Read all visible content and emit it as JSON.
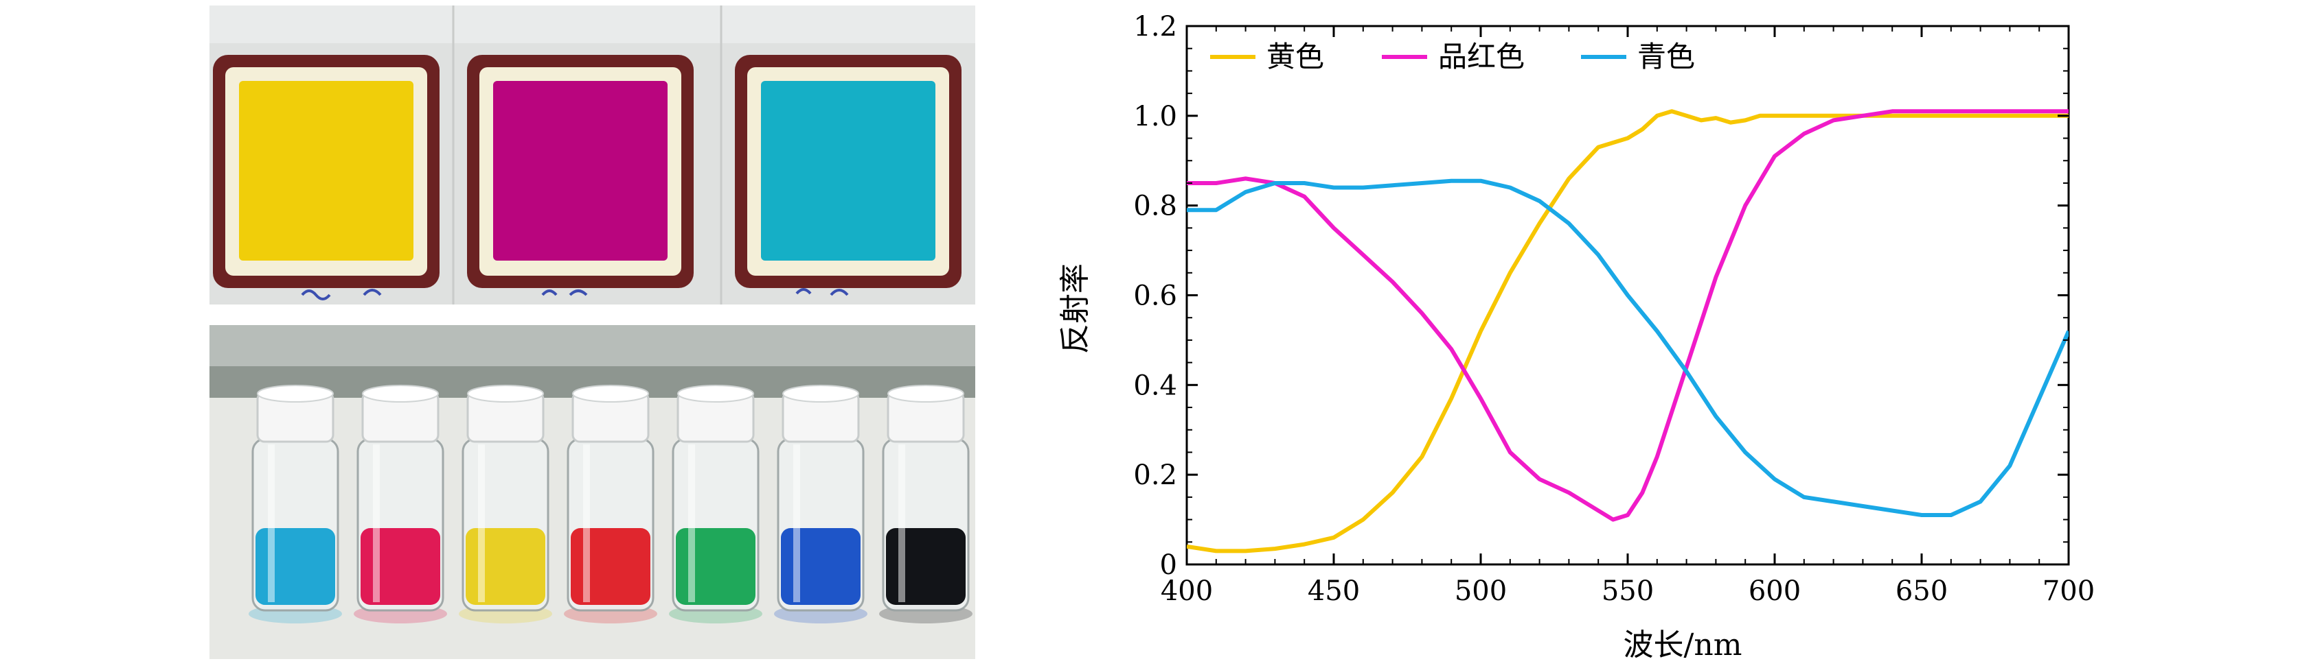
{
  "colors": {
    "yellow": "#F7C600",
    "magenta": "#F01BC8",
    "cyan": "#1AA8E6"
  },
  "photos": {
    "top": {
      "films": [
        {
          "color": "#F0CE0A"
        },
        {
          "color": "#B9057E"
        },
        {
          "color": "#15AFC6"
        }
      ]
    },
    "bottom": {
      "vials": [
        {
          "liquid": "#21A7D4"
        },
        {
          "liquid": "#E01A55"
        },
        {
          "liquid": "#E8CF25"
        },
        {
          "liquid": "#E0262E"
        },
        {
          "liquid": "#1FA85A"
        },
        {
          "liquid": "#1E55C8"
        },
        {
          "liquid": "#121418"
        }
      ]
    }
  },
  "chart_data": {
    "type": "line",
    "xlabel": "波长/nm",
    "ylabel": "反射率",
    "xlim": [
      400,
      700
    ],
    "ylim": [
      0,
      1.2
    ],
    "xticks": [
      400,
      450,
      500,
      550,
      600,
      650,
      700
    ],
    "yticks": [
      "0",
      "0.2",
      "0.4",
      "0.6",
      "0.8",
      "1.0",
      "1.2"
    ],
    "legend_position": "top-left",
    "grid": false,
    "series": [
      {
        "name": "黄色",
        "color": "#F7C600",
        "x": [
          400,
          410,
          420,
          430,
          440,
          450,
          455,
          460,
          470,
          480,
          490,
          500,
          510,
          520,
          530,
          540,
          550,
          555,
          560,
          565,
          570,
          575,
          580,
          585,
          590,
          595,
          600,
          620,
          650,
          700
        ],
        "y": [
          0.04,
          0.03,
          0.03,
          0.035,
          0.045,
          0.06,
          0.08,
          0.1,
          0.16,
          0.24,
          0.37,
          0.52,
          0.65,
          0.76,
          0.86,
          0.93,
          0.95,
          0.97,
          1.0,
          1.01,
          1.0,
          0.99,
          0.995,
          0.985,
          0.99,
          1.0,
          1.0,
          1.0,
          1.0,
          1.0
        ]
      },
      {
        "name": "品红色",
        "color": "#F01BC8",
        "x": [
          400,
          410,
          420,
          430,
          440,
          450,
          460,
          470,
          480,
          490,
          500,
          510,
          520,
          530,
          540,
          545,
          550,
          555,
          560,
          570,
          580,
          590,
          600,
          610,
          620,
          630,
          640,
          650,
          700
        ],
        "y": [
          0.85,
          0.85,
          0.86,
          0.85,
          0.82,
          0.75,
          0.69,
          0.63,
          0.56,
          0.48,
          0.37,
          0.25,
          0.19,
          0.16,
          0.12,
          0.1,
          0.11,
          0.16,
          0.24,
          0.44,
          0.64,
          0.8,
          0.91,
          0.96,
          0.99,
          1.0,
          1.01,
          1.01,
          1.01
        ]
      },
      {
        "name": "青色",
        "color": "#1AA8E6",
        "x": [
          400,
          410,
          420,
          430,
          440,
          450,
          460,
          470,
          480,
          490,
          500,
          510,
          520,
          530,
          540,
          550,
          560,
          570,
          580,
          590,
          600,
          610,
          620,
          630,
          640,
          650,
          660,
          670,
          680,
          690,
          700
        ],
        "y": [
          0.79,
          0.79,
          0.83,
          0.85,
          0.85,
          0.84,
          0.84,
          0.845,
          0.85,
          0.855,
          0.855,
          0.84,
          0.81,
          0.76,
          0.69,
          0.6,
          0.52,
          0.43,
          0.33,
          0.25,
          0.19,
          0.15,
          0.14,
          0.13,
          0.12,
          0.11,
          0.11,
          0.14,
          0.22,
          0.37,
          0.52
        ]
      }
    ]
  }
}
